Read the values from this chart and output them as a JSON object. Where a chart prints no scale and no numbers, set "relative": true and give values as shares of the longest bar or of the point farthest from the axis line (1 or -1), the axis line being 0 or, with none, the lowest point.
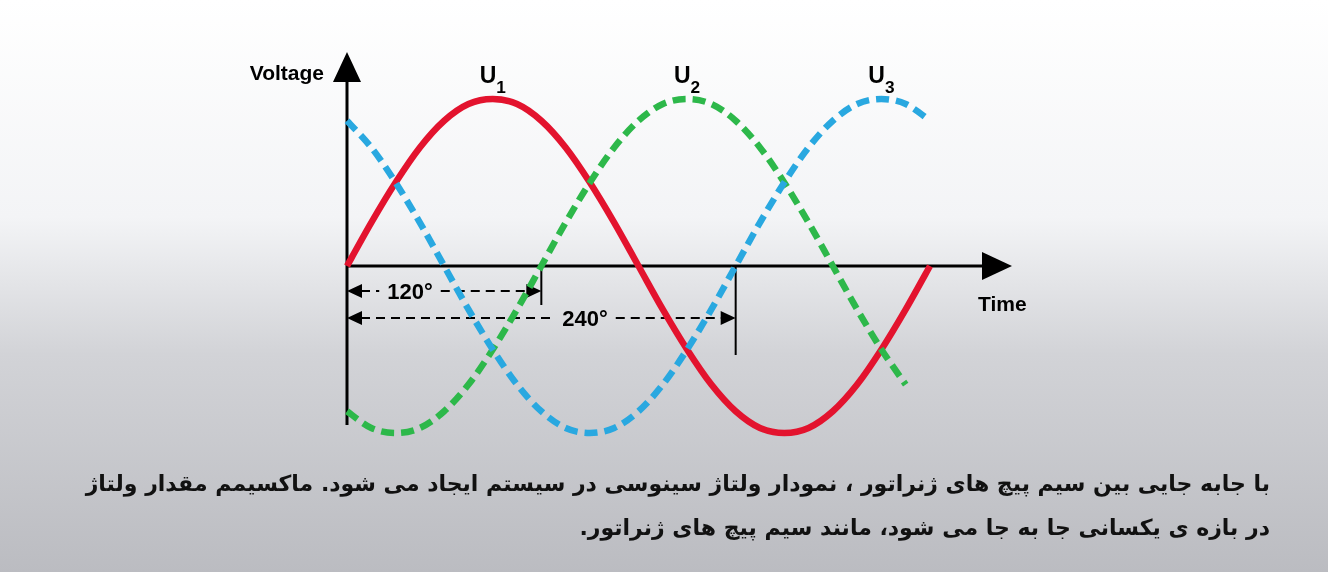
{
  "chart_data": {
    "type": "line",
    "relative": true,
    "xlabel": "Time",
    "ylabel": "Voltage",
    "legend": false,
    "marker": "none",
    "categories": [
      null,
      null,
      null,
      null,
      null,
      null,
      null,
      null,
      null,
      null,
      null,
      null,
      null,
      null,
      null,
      null,
      null,
      null,
      null,
      null,
      null,
      null,
      null,
      null,
      null
    ],
    "series": [
      {
        "name": "U$_{1}$",
        "color": "#e3132e",
        "line_style": "solid",
        "values": [
          0,
          0.26,
          0.5,
          0.71,
          0.87,
          0.97,
          1,
          0.97,
          0.87,
          0.71,
          0.5,
          0.26,
          0,
          -0.26,
          -0.5,
          -0.71,
          -0.87,
          -0.97,
          -1,
          -0.97,
          -0.87,
          -0.71,
          -0.5,
          -0.26,
          0
        ]
      },
      {
        "name": "U$_{2}$",
        "color": "#2db84a",
        "line_style": "dashed",
        "values": [
          -0.87,
          -0.97,
          -1,
          -0.97,
          -0.87,
          -0.71,
          -0.5,
          -0.26,
          0,
          0.26,
          0.5,
          0.71,
          0.87,
          0.97,
          1,
          0.97,
          0.87,
          0.71,
          0.5,
          0.26,
          0,
          -0.26,
          -0.5,
          -0.71,
          null
        ]
      },
      {
        "name": "U$_{3}$",
        "color": "#29a8e0",
        "line_style": "dashed",
        "values": [
          0.87,
          0.71,
          0.5,
          0.26,
          0,
          -0.26,
          -0.5,
          -0.71,
          -0.87,
          -0.97,
          -1,
          -0.97,
          -0.87,
          -0.71,
          -0.5,
          -0.26,
          0,
          0.26,
          0.5,
          0.71,
          0.87,
          0.97,
          1,
          0.97,
          0.87
        ]
      }
    ],
    "annotations": [
      "120°",
      "240°",
      "با جابه جایی بین سیم پیچ های ژنراتور ، نمودار ولتاژ سینوسی در سیستم ایجاد می شود. ماکسیمم مقدار ولتاژ در بازه ی یکسانی جا به جا می شود، مانند سیم پیچ های ژنراتور."
    ]
  }
}
